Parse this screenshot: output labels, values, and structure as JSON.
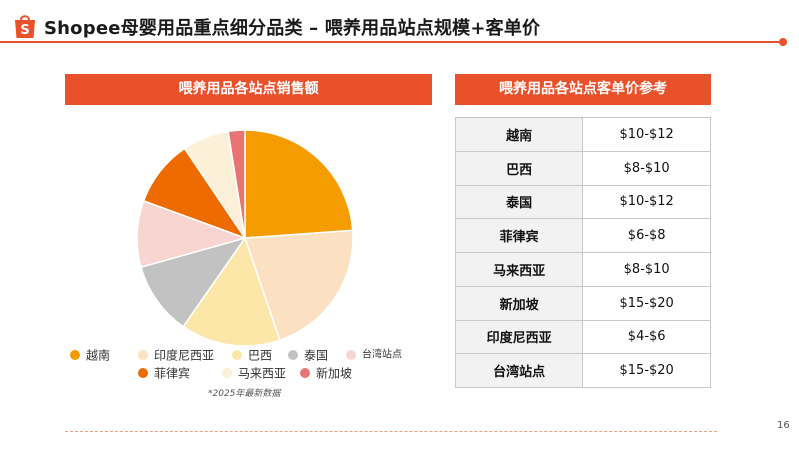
{
  "header": {
    "title": "Shopee母婴用品重点细分品类 – 喂养用品站点规模+客单价",
    "logo_letter": "S"
  },
  "colors": {
    "accent": "#e8512a"
  },
  "chart_banner": "喂养用品各站点销售额",
  "table_banner": "喂养用品各站点客单价参考",
  "chart_data": {
    "type": "pie",
    "title": "喂养用品各站点销售额",
    "start_angle": 0,
    "slices": [
      {
        "label": "越南",
        "value": 24,
        "color": "#f59c00"
      },
      {
        "label": "印度尼西亚",
        "value": 21,
        "color": "#fbe0c2"
      },
      {
        "label": "巴西",
        "value": 15,
        "color": "#fde7a8"
      },
      {
        "label": "泰国",
        "value": 11,
        "color": "#c2c2c2"
      },
      {
        "label": "台湾站点",
        "value": 10,
        "color": "#f9d5d1"
      },
      {
        "label": "菲律宾",
        "value": 10,
        "color": "#ee6b00"
      },
      {
        "label": "马来西亚",
        "value": 7,
        "color": "#fcf0d9"
      },
      {
        "label": "新加坡",
        "value": 2.5,
        "color": "#e87474"
      }
    ],
    "note": "*2025年最新数据"
  },
  "table": {
    "rows": [
      {
        "site": "越南",
        "price": "$10-$12"
      },
      {
        "site": "巴西",
        "price": "$8-$10"
      },
      {
        "site": "泰国",
        "price": "$10-$12"
      },
      {
        "site": "菲律宾",
        "price": "$6-$8"
      },
      {
        "site": "马来西亚",
        "price": "$8-$10"
      },
      {
        "site": "新加坡",
        "price": "$15-$20"
      },
      {
        "site": "印度尼西亚",
        "price": "$4-$6"
      },
      {
        "site": "台湾站点",
        "price": "$15-$20"
      }
    ]
  },
  "page_number": "16"
}
